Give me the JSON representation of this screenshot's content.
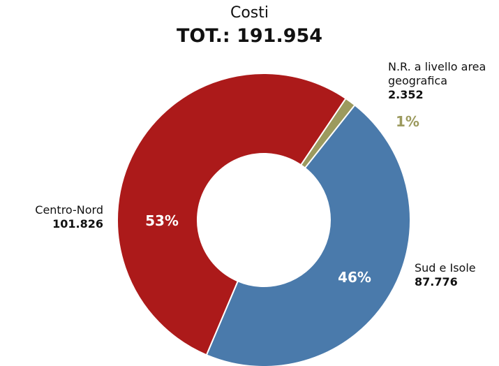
{
  "chart_data": {
    "type": "donut",
    "title": "Costi",
    "subtitle": "TOT.: 191.954",
    "categories": [
      "N.R. a livello area geografica",
      "Sud e Isole",
      "Centro-Nord"
    ],
    "values": [
      2352,
      87776,
      101826
    ],
    "value_labels": [
      "2.352",
      "87.776",
      "101.826"
    ],
    "percent_labels": [
      "1%",
      "46%",
      "53%"
    ],
    "colors": [
      "#9c9a5e",
      "#4a7aab",
      "#ac1a1a"
    ]
  }
}
